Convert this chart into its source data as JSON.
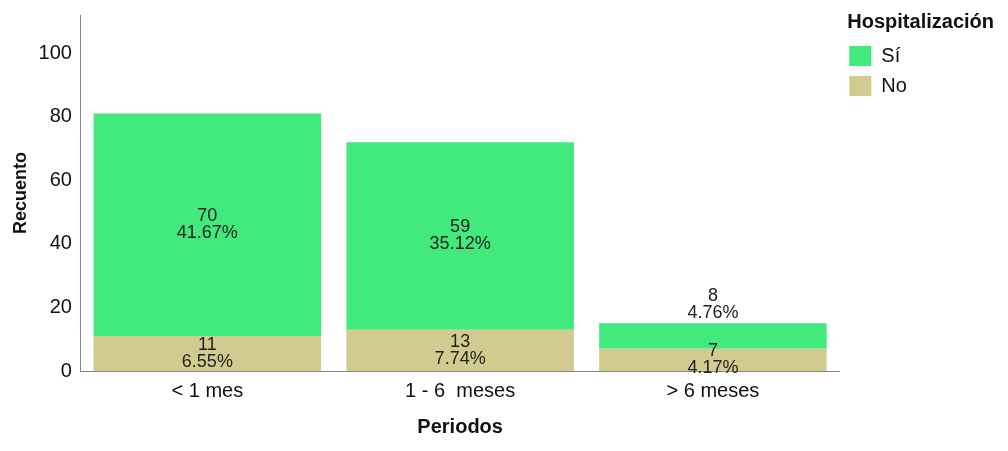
{
  "chart_data": {
    "type": "bar",
    "stacked": true,
    "xlabel": "Periodos",
    "ylabel": "Recuento",
    "legend_title": "Hospitalización",
    "legend": "top right",
    "grid": false,
    "categories": [
      "< 1 mes",
      "1 - 6  meses",
      "> 6 meses"
    ],
    "ylim": [
      0,
      112
    ],
    "yticks": [
      0,
      20,
      40,
      60,
      80,
      100
    ],
    "series": [
      {
        "name": "No",
        "color": "#d2cb8f",
        "values": [
          11,
          13,
          7
        ],
        "value_labels": [
          "11\n6.55%",
          "13\n7.74%",
          "7\n4.17%"
        ]
      },
      {
        "name": "Sí",
        "color": "#42e97d",
        "values": [
          70,
          59,
          8
        ],
        "value_labels": [
          "70\n41.67%",
          "59\n35.12%",
          "8\n4.76%"
        ]
      }
    ]
  }
}
